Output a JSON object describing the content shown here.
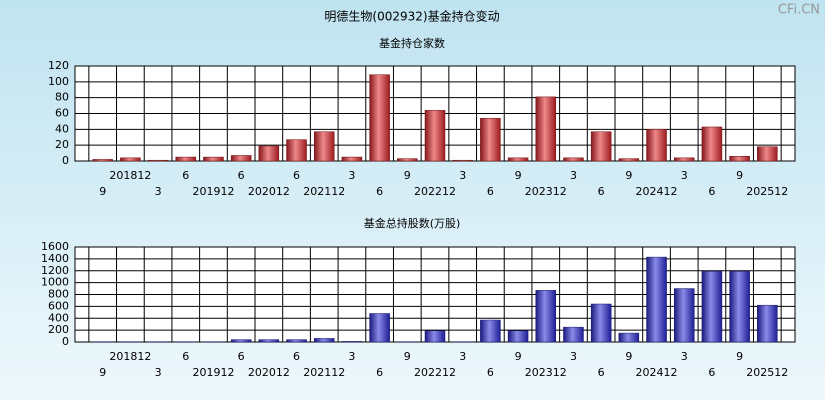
{
  "title": "明德生物(002932)基金持仓变动",
  "watermark": "CFi.CN",
  "chart_data": [
    {
      "type": "bar",
      "title": "基金持仓家数",
      "color": "#e0262b",
      "grid": true,
      "categories": [
        "9",
        "201812",
        "3",
        "6",
        "201912",
        "6",
        "202012",
        "6",
        "202112",
        "3",
        "6",
        "9",
        "202212",
        "3",
        "6",
        "9",
        "202312",
        "3",
        "6",
        "9",
        "202412",
        "3",
        "6",
        "9",
        "202512"
      ],
      "values": [
        2,
        4,
        1,
        5,
        5,
        7,
        19,
        27,
        37,
        5,
        109,
        3,
        64,
        1,
        54,
        4,
        81,
        4,
        37,
        3,
        40,
        4,
        43,
        6,
        18
      ],
      "ylim": [
        0,
        120
      ],
      "yticks": [
        0,
        20,
        40,
        60,
        80,
        100,
        120
      ]
    },
    {
      "type": "bar",
      "title": "基金总持股数(万股)",
      "color": "#2b2bd6",
      "grid": true,
      "categories": [
        "9",
        "201812",
        "3",
        "6",
        "201912",
        "6",
        "202012",
        "6",
        "202112",
        "3",
        "6",
        "9",
        "202212",
        "3",
        "6",
        "9",
        "202312",
        "3",
        "6",
        "9",
        "202412",
        "3",
        "6",
        "9",
        "202512"
      ],
      "values": [
        5,
        5,
        5,
        5,
        5,
        40,
        40,
        40,
        60,
        10,
        480,
        5,
        190,
        5,
        370,
        190,
        870,
        250,
        640,
        150,
        1430,
        900,
        1190,
        1190,
        620
      ],
      "ylim": [
        0,
        1600
      ],
      "yticks": [
        0,
        200,
        400,
        600,
        800,
        1000,
        1200,
        1400,
        1600
      ]
    }
  ]
}
